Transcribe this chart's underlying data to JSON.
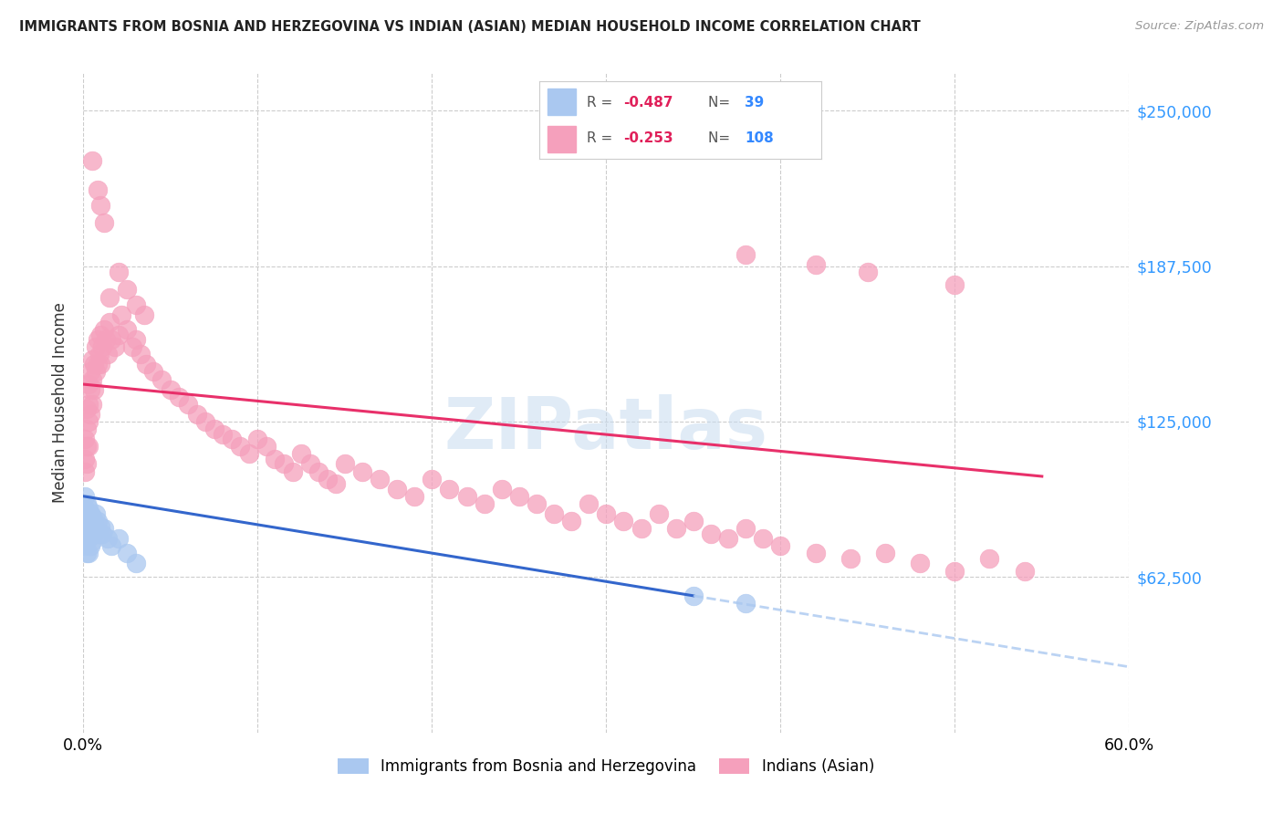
{
  "title": "IMMIGRANTS FROM BOSNIA AND HERZEGOVINA VS INDIAN (ASIAN) MEDIAN HOUSEHOLD INCOME CORRELATION CHART",
  "source": "Source: ZipAtlas.com",
  "ylabel": "Median Household Income",
  "ytick_labels": [
    "$62,500",
    "$125,000",
    "$187,500",
    "$250,000"
  ],
  "ytick_values": [
    62500,
    125000,
    187500,
    250000
  ],
  "ymin": 0,
  "ymax": 265000,
  "xmin": 0.0,
  "xmax": 0.6,
  "color_bosnia": "#aac8f0",
  "color_india": "#f5a0bc",
  "color_bosnia_line": "#3366cc",
  "color_india_line": "#e8306a",
  "color_bosnia_dash": "#aac8f0",
  "legend_label1": "Immigrants from Bosnia and Herzegovina",
  "legend_label2": "Indians (Asian)",
  "watermark": "ZIPatlas",
  "bosnia_x": [
    0.001,
    0.001,
    0.001,
    0.001,
    0.001,
    0.002,
    0.002,
    0.002,
    0.002,
    0.002,
    0.002,
    0.003,
    0.003,
    0.003,
    0.003,
    0.003,
    0.004,
    0.004,
    0.004,
    0.004,
    0.005,
    0.005,
    0.005,
    0.006,
    0.006,
    0.007,
    0.007,
    0.008,
    0.009,
    0.01,
    0.011,
    0.012,
    0.014,
    0.016,
    0.02,
    0.025,
    0.03,
    0.35,
    0.38
  ],
  "bosnia_y": [
    95000,
    90000,
    85000,
    80000,
    75000,
    92000,
    88000,
    85000,
    82000,
    78000,
    72000,
    90000,
    87000,
    82000,
    78000,
    72000,
    88000,
    85000,
    80000,
    75000,
    87000,
    83000,
    77000,
    85000,
    80000,
    88000,
    82000,
    85000,
    80000,
    83000,
    80000,
    82000,
    78000,
    75000,
    78000,
    72000,
    68000,
    55000,
    52000
  ],
  "india_x": [
    0.001,
    0.001,
    0.001,
    0.002,
    0.002,
    0.002,
    0.002,
    0.003,
    0.003,
    0.003,
    0.003,
    0.004,
    0.004,
    0.004,
    0.005,
    0.005,
    0.005,
    0.006,
    0.006,
    0.007,
    0.007,
    0.008,
    0.008,
    0.009,
    0.01,
    0.01,
    0.011,
    0.012,
    0.013,
    0.014,
    0.015,
    0.016,
    0.018,
    0.02,
    0.022,
    0.025,
    0.028,
    0.03,
    0.033,
    0.036,
    0.04,
    0.045,
    0.05,
    0.055,
    0.06,
    0.065,
    0.07,
    0.075,
    0.08,
    0.085,
    0.09,
    0.095,
    0.1,
    0.105,
    0.11,
    0.115,
    0.12,
    0.125,
    0.13,
    0.135,
    0.14,
    0.145,
    0.15,
    0.16,
    0.17,
    0.18,
    0.19,
    0.2,
    0.21,
    0.22,
    0.23,
    0.24,
    0.25,
    0.26,
    0.27,
    0.28,
    0.29,
    0.3,
    0.31,
    0.32,
    0.33,
    0.34,
    0.35,
    0.36,
    0.37,
    0.38,
    0.39,
    0.4,
    0.42,
    0.44,
    0.46,
    0.48,
    0.5,
    0.52,
    0.54,
    0.015,
    0.02,
    0.025,
    0.03,
    0.035,
    0.005,
    0.008,
    0.01,
    0.012,
    0.38,
    0.42,
    0.45,
    0.5
  ],
  "india_y": [
    118000,
    110000,
    105000,
    130000,
    122000,
    115000,
    108000,
    140000,
    132000,
    125000,
    115000,
    145000,
    138000,
    128000,
    150000,
    142000,
    132000,
    148000,
    138000,
    155000,
    145000,
    158000,
    148000,
    152000,
    160000,
    148000,
    155000,
    162000,
    158000,
    152000,
    165000,
    158000,
    155000,
    160000,
    168000,
    162000,
    155000,
    158000,
    152000,
    148000,
    145000,
    142000,
    138000,
    135000,
    132000,
    128000,
    125000,
    122000,
    120000,
    118000,
    115000,
    112000,
    118000,
    115000,
    110000,
    108000,
    105000,
    112000,
    108000,
    105000,
    102000,
    100000,
    108000,
    105000,
    102000,
    98000,
    95000,
    102000,
    98000,
    95000,
    92000,
    98000,
    95000,
    92000,
    88000,
    85000,
    92000,
    88000,
    85000,
    82000,
    88000,
    82000,
    85000,
    80000,
    78000,
    82000,
    78000,
    75000,
    72000,
    70000,
    72000,
    68000,
    65000,
    70000,
    65000,
    175000,
    185000,
    178000,
    172000,
    168000,
    230000,
    218000,
    212000,
    205000,
    192000,
    188000,
    185000,
    180000
  ]
}
